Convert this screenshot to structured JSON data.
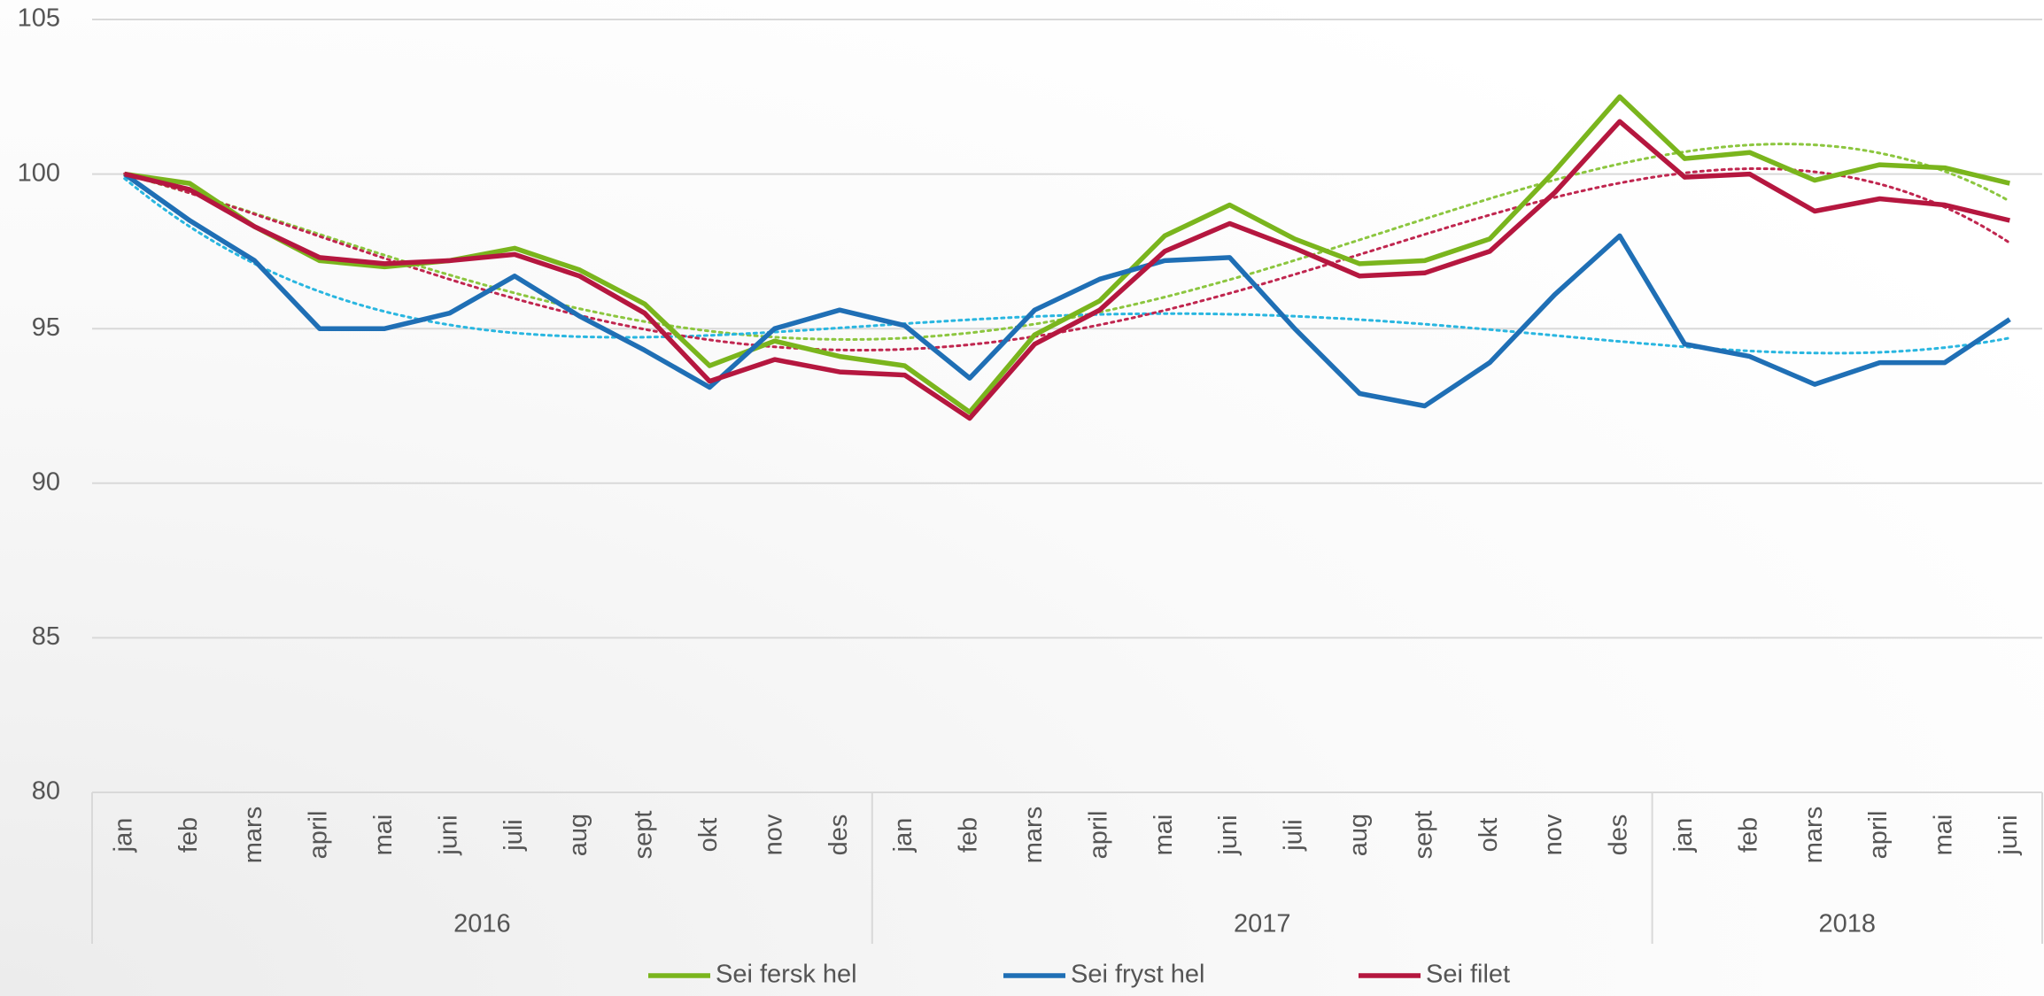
{
  "chart_data": {
    "type": "line",
    "categories": [
      "jan",
      "feb",
      "mars",
      "april",
      "mai",
      "juni",
      "juli",
      "aug",
      "sept",
      "okt",
      "nov",
      "des",
      "jan",
      "feb",
      "mars",
      "april",
      "mai",
      "juni",
      "juli",
      "aug",
      "sept",
      "okt",
      "nov",
      "des",
      "jan",
      "feb",
      "mars",
      "april",
      "mai",
      "juni"
    ],
    "groups": [
      {
        "name": "2016",
        "count": 12
      },
      {
        "name": "2017",
        "count": 12
      },
      {
        "name": "2018",
        "count": 6
      }
    ],
    "series": [
      {
        "name": "Sei fersk hel",
        "color": "#7ab51d",
        "values": [
          100,
          99.7,
          98.3,
          97.2,
          97.0,
          97.2,
          97.6,
          96.9,
          95.8,
          93.8,
          94.6,
          94.1,
          93.8,
          92.3,
          94.8,
          95.9,
          98.0,
          99.0,
          97.9,
          97.1,
          97.2,
          97.9,
          100.1,
          102.5,
          100.5,
          100.7,
          99.8,
          100.3,
          100.2,
          99.7
        ]
      },
      {
        "name": "Sei fryst hel",
        "color": "#1f6fb5",
        "values": [
          100,
          98.5,
          97.2,
          95.0,
          95.0,
          95.5,
          96.7,
          95.4,
          94.3,
          93.1,
          95.0,
          95.6,
          95.1,
          93.4,
          95.6,
          96.6,
          97.2,
          97.3,
          95.0,
          92.9,
          92.5,
          93.9,
          96.1,
          98.0,
          94.5,
          94.1,
          93.2,
          93.9,
          93.9,
          95.3
        ]
      },
      {
        "name": "Sei filet",
        "color": "#b5173f",
        "values": [
          100,
          99.5,
          98.3,
          97.3,
          97.1,
          97.2,
          97.4,
          96.7,
          95.5,
          93.3,
          94.0,
          93.6,
          93.5,
          92.1,
          94.5,
          95.6,
          97.5,
          98.4,
          97.6,
          96.7,
          96.8,
          97.5,
          99.4,
          101.7,
          99.9,
          100.0,
          98.8,
          99.2,
          99.0,
          98.5
        ]
      }
    ],
    "trendline_colors": [
      "#8cc63f",
      "#29b6e0",
      "#c0264f"
    ],
    "ylim": [
      80,
      105
    ],
    "yticks": [
      80,
      85,
      90,
      95,
      100,
      105
    ],
    "grid": true,
    "trendline": true,
    "legend": "bottom"
  }
}
